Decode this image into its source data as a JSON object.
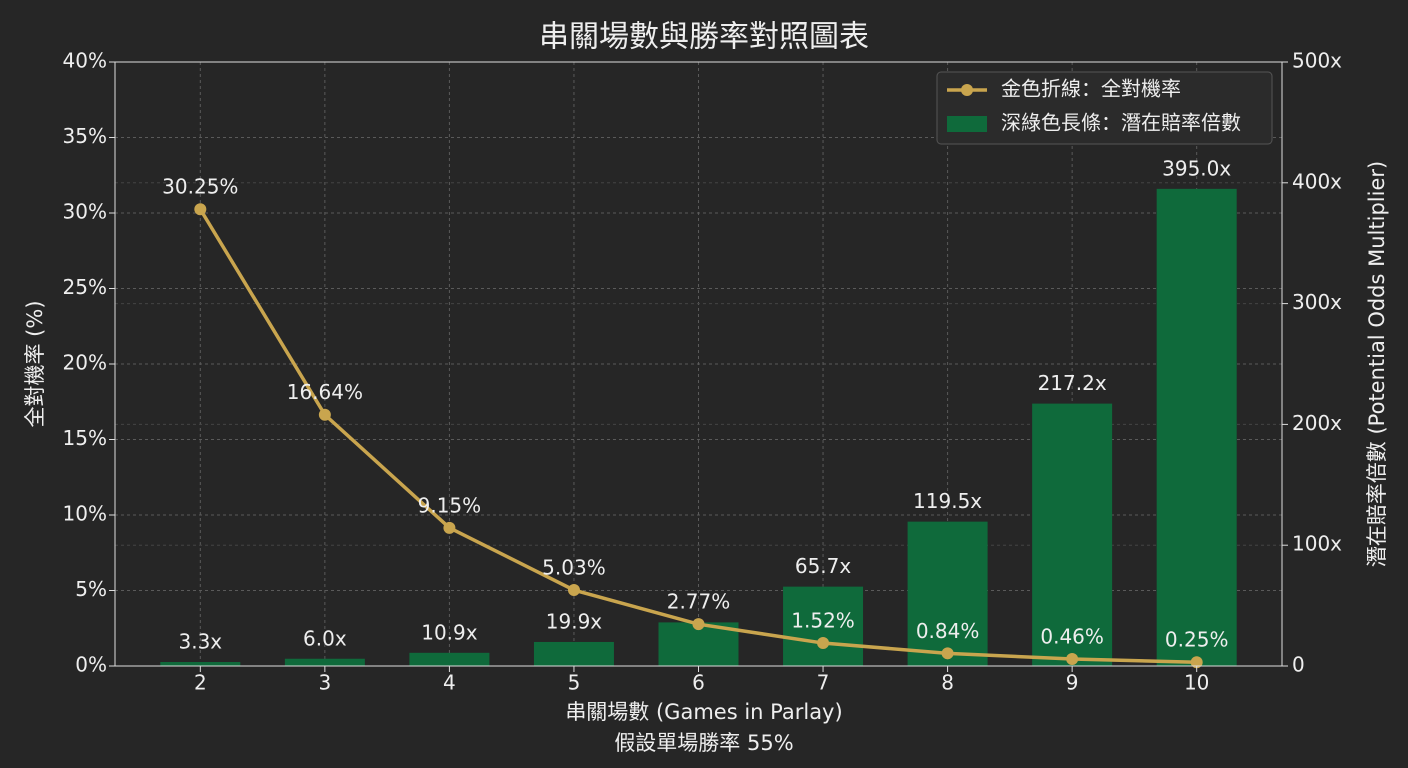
{
  "chart_data": {
    "type": "bar-line",
    "title": "串關場數與勝率對照圖表",
    "xlabel": "串關場數 (Games in Parlay)",
    "note": "假設單場勝率 55%",
    "ylabel": "全對機率 (%)",
    "y2label": "潛在賠率倍數 (Potential Odds Multiplier)",
    "categories": [
      "2",
      "3",
      "4",
      "5",
      "6",
      "7",
      "8",
      "9",
      "10"
    ],
    "ylim": [
      0,
      40
    ],
    "yticks": [
      {
        "value": 0,
        "label": "0%"
      },
      {
        "value": 5,
        "label": "5%"
      },
      {
        "value": 10,
        "label": "10%"
      },
      {
        "value": 15,
        "label": "15%"
      },
      {
        "value": 20,
        "label": "20%"
      },
      {
        "value": 25,
        "label": "25%"
      },
      {
        "value": 30,
        "label": "30%"
      },
      {
        "value": 35,
        "label": "35%"
      },
      {
        "value": 40,
        "label": "40%"
      }
    ],
    "y2lim": [
      0,
      500
    ],
    "y2ticks": [
      0,
      {
        "value": 100,
        "label": "100x"
      },
      {
        "value": 200,
        "label": "200x"
      },
      {
        "value": 300,
        "label": "300x"
      },
      {
        "value": 400,
        "label": "400x"
      },
      {
        "value": 500,
        "label": "500x"
      }
    ],
    "grid": true,
    "legend": "upper right",
    "series": [
      {
        "name": "金色折線：全對機率",
        "type": "line",
        "color": "#c9a54e",
        "values": [
          30.25,
          16.64,
          9.15,
          5.03,
          2.77,
          1.52,
          0.84,
          0.46,
          0.25
        ],
        "value_labels": [
          "30.25%",
          "16.64%",
          "9.15%",
          "5.03%",
          "2.77%",
          "1.52%",
          "0.84%",
          "0.46%",
          "0.25%"
        ]
      },
      {
        "name": "深綠色長條：潛在賠率倍數",
        "type": "bar",
        "axis": "y2",
        "color": "#0f6a3b",
        "values": [
          3.3,
          6.0,
          10.9,
          19.9,
          36.1,
          65.7,
          119.5,
          217.2,
          395.0
        ],
        "value_labels": [
          "3.3x",
          "6.0x",
          "10.9x",
          "19.9x",
          null,
          "65.7x",
          "119.5x",
          "217.2x",
          "395.0x"
        ]
      }
    ]
  }
}
